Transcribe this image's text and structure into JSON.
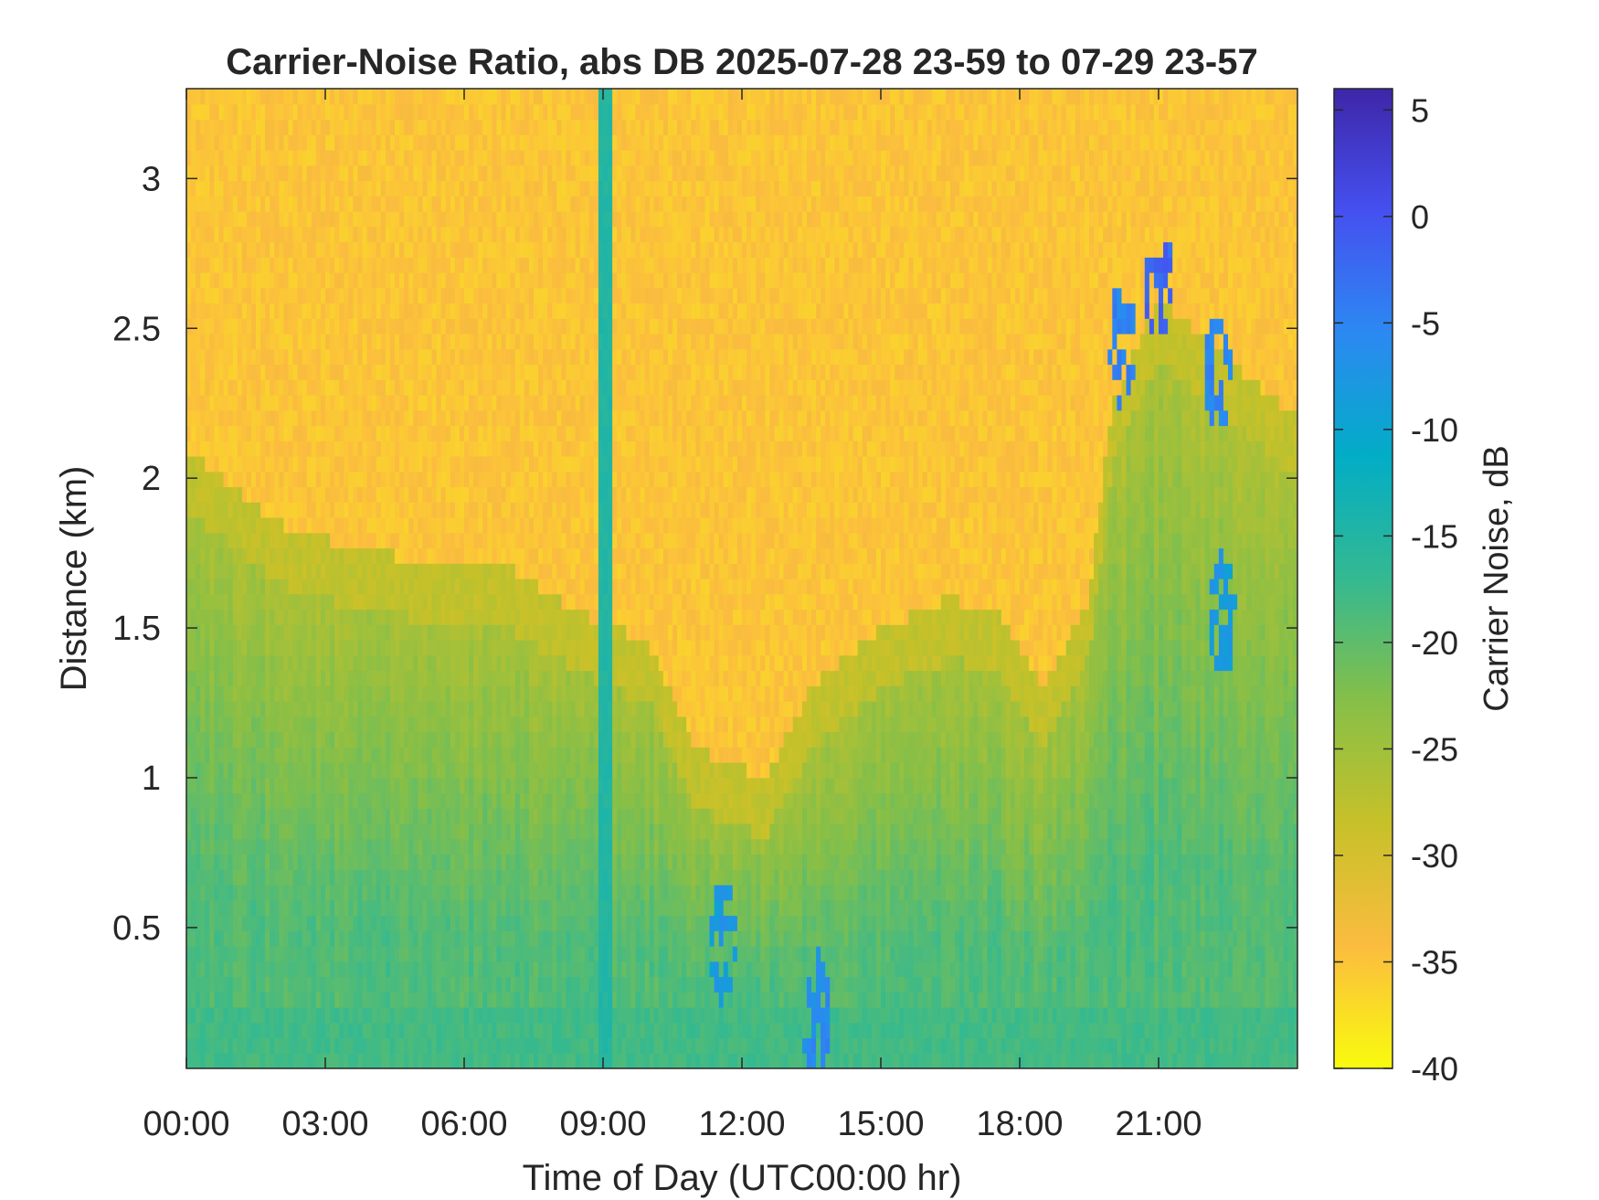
{
  "chart_data": {
    "type": "heatmap",
    "title": "Carrier-Noise Ratio, abs DB 2025-07-28 23-59 to 07-29 23-57",
    "xlabel": "Time of Day (UTC00:00 hr)",
    "ylabel": "Distance (km)",
    "colorbar_label": "Carrier Noise, dB",
    "x_unit": "hours",
    "xlim": [
      0,
      24
    ],
    "ylim": [
      0.03,
      3.3
    ],
    "clim": [
      -40,
      6
    ],
    "x_ticks": [
      0,
      3,
      6,
      9,
      12,
      15,
      18,
      21
    ],
    "x_tick_labels": [
      "00:00",
      "03:00",
      "06:00",
      "09:00",
      "12:00",
      "15:00",
      "18:00",
      "21:00"
    ],
    "y_ticks": [
      0.5,
      1,
      1.5,
      2,
      2.5,
      3
    ],
    "y_tick_labels": [
      "0.5",
      "1",
      "1.5",
      "2",
      "2.5",
      "3"
    ],
    "colorbar_ticks": [
      -40,
      -35,
      -30,
      -25,
      -20,
      -15,
      -10,
      -5,
      0,
      5
    ],
    "colorbar_tick_labels": [
      "-40",
      "-35",
      "-30",
      "-25",
      "-20",
      "-15",
      "-10",
      "-5",
      "0",
      "5"
    ],
    "colormap": [
      "#f9fb0e",
      "#fbbc3f",
      "#c7c129",
      "#86bf48",
      "#34b991",
      "#02adc6",
      "#2c89f2",
      "#4550f0",
      "#3e26a8"
    ],
    "background_level_db": -35,
    "boundary_layer_top_km": [
      [
        0,
        2.1
      ],
      [
        2,
        1.85
      ],
      [
        4,
        1.75
      ],
      [
        7,
        1.7
      ],
      [
        8.5,
        1.55
      ],
      [
        10,
        1.45
      ],
      [
        11,
        1.1
      ],
      [
        12.5,
        1.0
      ],
      [
        13.5,
        1.3
      ],
      [
        15,
        1.5
      ],
      [
        16.5,
        1.6
      ],
      [
        17.5,
        1.55
      ],
      [
        18.5,
        1.3
      ],
      [
        19.5,
        1.6
      ],
      [
        20,
        2.25
      ],
      [
        21,
        2.6
      ],
      [
        22.5,
        2.4
      ],
      [
        24,
        2.2
      ]
    ],
    "vertical_band": {
      "time": 9.05,
      "level_db": -15
    },
    "surface_layer": {
      "top_km": 0.25,
      "level_db": -18
    },
    "low_signal_patches": [
      {
        "time": 11.6,
        "distance_km": 0.45,
        "level_db": -8
      },
      {
        "time": 13.6,
        "distance_km": 0.22,
        "level_db": -6
      },
      {
        "time": 20.2,
        "distance_km": 2.45,
        "level_db": -5
      },
      {
        "time": 21.0,
        "distance_km": 2.65,
        "level_db": -2
      },
      {
        "time": 22.3,
        "distance_km": 2.35,
        "level_db": -5
      },
      {
        "time": 22.4,
        "distance_km": 1.55,
        "level_db": -8
      }
    ]
  }
}
